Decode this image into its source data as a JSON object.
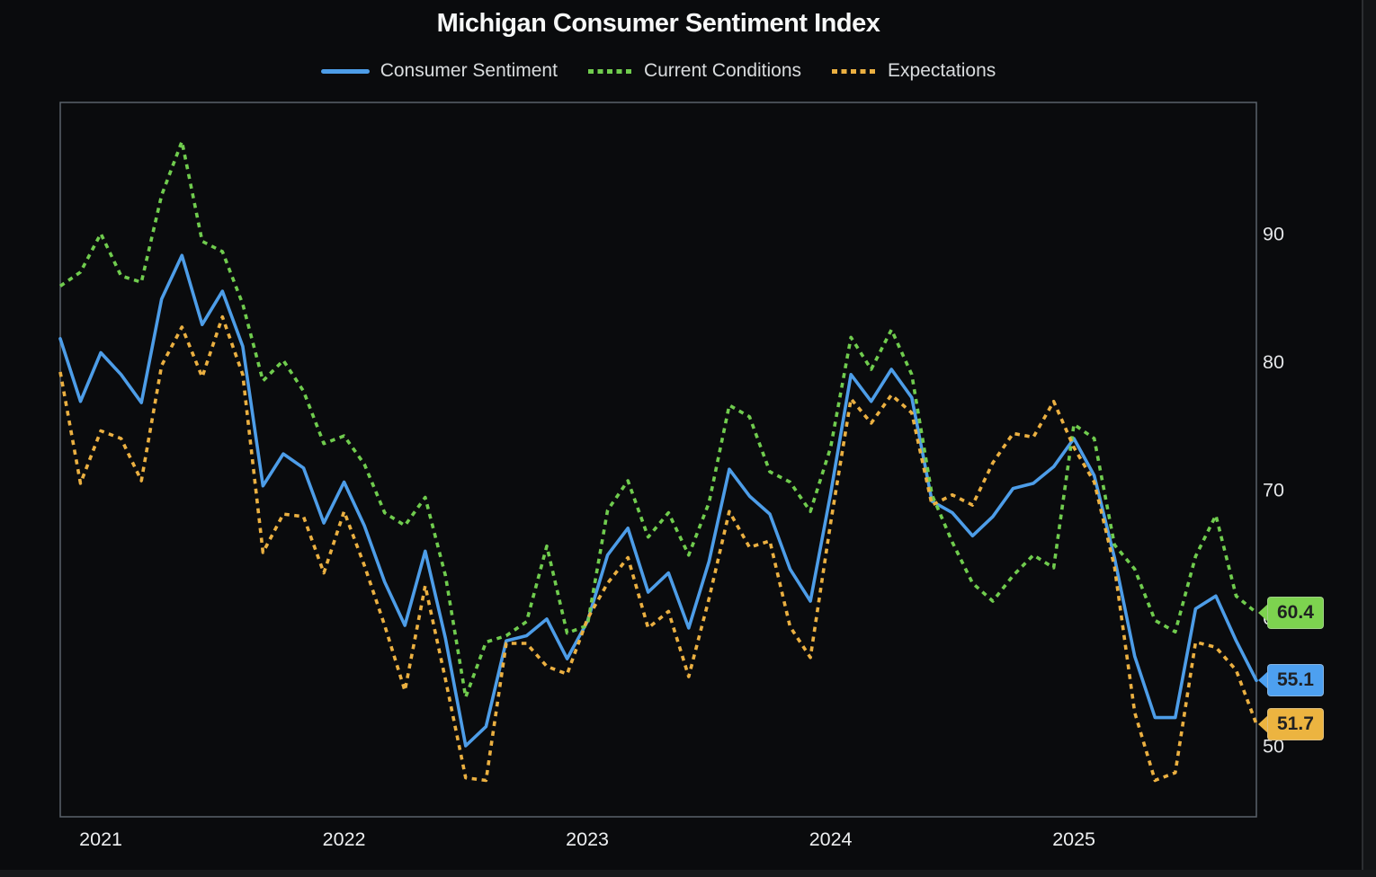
{
  "chart_data": {
    "type": "line",
    "title": "Michigan Consumer Sentiment Index",
    "xlabel": "",
    "ylabel": "",
    "x_start": "2020-10",
    "x_interval": "monthly",
    "n_points": 60,
    "x_tick_labels": [
      "2021",
      "2022",
      "2023",
      "2024",
      "2025"
    ],
    "x_tick_month_indices": [
      2,
      14,
      26,
      38,
      50
    ],
    "y_ticks": [
      50,
      60,
      70,
      80,
      90
    ],
    "ylim": [
      45,
      100
    ],
    "grid": false,
    "legend_position": "top",
    "plot_border_color": "#5a626b",
    "series": [
      {
        "name": "Consumer Sentiment",
        "line_style": "solid",
        "color": "#4D9DE8",
        "badge_color": "#4DA0F0",
        "end_label": "55.1",
        "values": [
          81.8,
          76.9,
          80.7,
          79.0,
          76.8,
          84.9,
          88.3,
          82.9,
          85.5,
          81.2,
          70.3,
          72.8,
          71.7,
          67.4,
          70.6,
          67.2,
          62.8,
          59.4,
          65.2,
          58.4,
          50.0,
          51.5,
          58.2,
          58.6,
          59.9,
          56.8,
          59.7,
          64.9,
          67.0,
          62.0,
          63.5,
          59.2,
          64.4,
          71.6,
          69.5,
          68.1,
          63.8,
          61.3,
          69.7,
          79.0,
          76.9,
          79.4,
          77.2,
          69.1,
          68.2,
          66.4,
          67.9,
          70.1,
          70.5,
          71.8,
          74.0,
          71.1,
          64.7,
          57.0,
          52.2,
          52.2,
          60.7,
          61.7,
          58.2,
          55.1
        ]
      },
      {
        "name": "Current Conditions",
        "line_style": "dashed",
        "color": "#70CC4E",
        "badge_color": "#7DD34F",
        "end_label": "60.4",
        "values": [
          85.9,
          87.0,
          90.0,
          86.7,
          86.2,
          93.0,
          97.2,
          89.4,
          88.6,
          84.5,
          78.5,
          80.1,
          77.7,
          73.6,
          74.2,
          72.0,
          68.2,
          67.2,
          69.4,
          63.3,
          53.8,
          58.1,
          58.6,
          59.7,
          65.6,
          58.8,
          59.4,
          68.4,
          70.7,
          66.3,
          68.2,
          64.9,
          69.0,
          76.6,
          75.7,
          71.4,
          70.6,
          68.3,
          73.3,
          81.9,
          79.4,
          82.5,
          79.0,
          69.6,
          65.9,
          62.7,
          61.3,
          63.3,
          64.9,
          63.9,
          75.1,
          74.0,
          65.7,
          63.8,
          59.8,
          58.9,
          64.8,
          68.0,
          61.7,
          60.4
        ]
      },
      {
        "name": "Expectations",
        "line_style": "dashed",
        "color": "#EBB041",
        "badge_color": "#ECB440",
        "end_label": "51.7",
        "values": [
          79.2,
          70.5,
          74.6,
          74.0,
          70.7,
          79.7,
          82.7,
          78.8,
          83.5,
          79.0,
          65.1,
          68.1,
          67.9,
          63.5,
          68.3,
          64.1,
          59.4,
          54.3,
          62.5,
          55.2,
          47.5,
          47.3,
          58.0,
          58.0,
          56.2,
          55.6,
          59.9,
          62.7,
          64.7,
          59.2,
          60.5,
          55.4,
          61.5,
          68.3,
          65.5,
          66.0,
          59.3,
          56.9,
          67.4,
          77.1,
          75.2,
          77.4,
          76.0,
          68.8,
          69.6,
          68.8,
          72.1,
          74.4,
          74.1,
          76.9,
          73.3,
          70.6,
          64.0,
          52.6,
          47.3,
          47.9,
          58.1,
          57.7,
          55.9,
          51.7
        ]
      }
    ]
  }
}
